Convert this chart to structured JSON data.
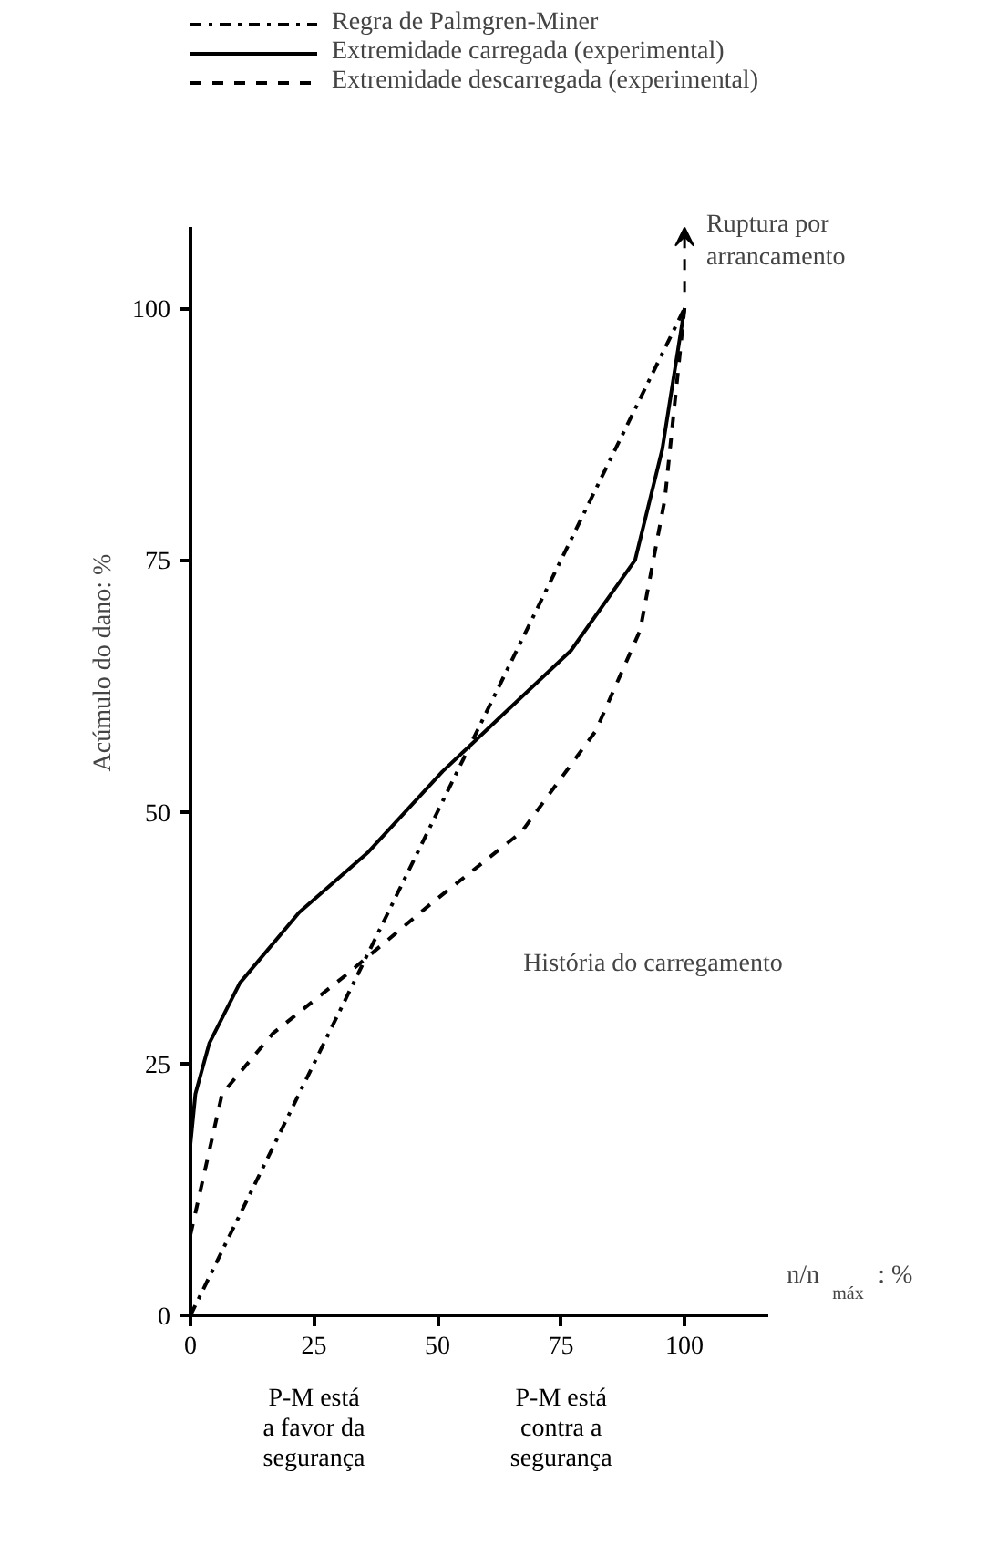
{
  "chart_data": {
    "type": "line",
    "xlabel": "n/n$_{máx}$ : %",
    "ylabel": "Acúmulo do dano: %",
    "xlim": [
      0,
      117
    ],
    "ylim": [
      0,
      108
    ],
    "xticks": [
      0,
      25,
      50,
      75,
      100
    ],
    "yticks": [
      0,
      25,
      50,
      75,
      100
    ],
    "grid": false,
    "legend": "top",
    "marker": "none",
    "series": [
      {
        "name": "Regra de Palmgren-Miner",
        "color": "#000000",
        "line_style": "dashdot",
        "x": [
          0,
          100
        ],
        "values": [
          0,
          100
        ]
      },
      {
        "name": "Extremidade carregada (experimental)",
        "color": "#000000",
        "line_style": "solid",
        "x": [
          0,
          1,
          3.8,
          10,
          22,
          36,
          51,
          64,
          77,
          90,
          95.5,
          100
        ],
        "values": [
          17,
          22,
          27,
          33,
          40,
          46,
          54,
          60,
          66,
          75,
          86,
          100
        ]
      },
      {
        "name": "Extremidade descarregada (experimental)",
        "color": "#000000",
        "line_style": "dashed",
        "x": [
          0,
          6.4,
          16.7,
          32,
          49,
          67,
          82,
          91,
          96,
          100
        ],
        "values": [
          8,
          22,
          28,
          34,
          41,
          48,
          58,
          68,
          81,
          100
        ]
      }
    ],
    "annotations": [
      {
        "text": "Ruptura por\narrancamento",
        "x": 100,
        "y": 100
      },
      "História do carregamento",
      "P-M está\na favor da\nsegurança",
      "P-M está\ncontra a\nsegurança"
    ]
  }
}
